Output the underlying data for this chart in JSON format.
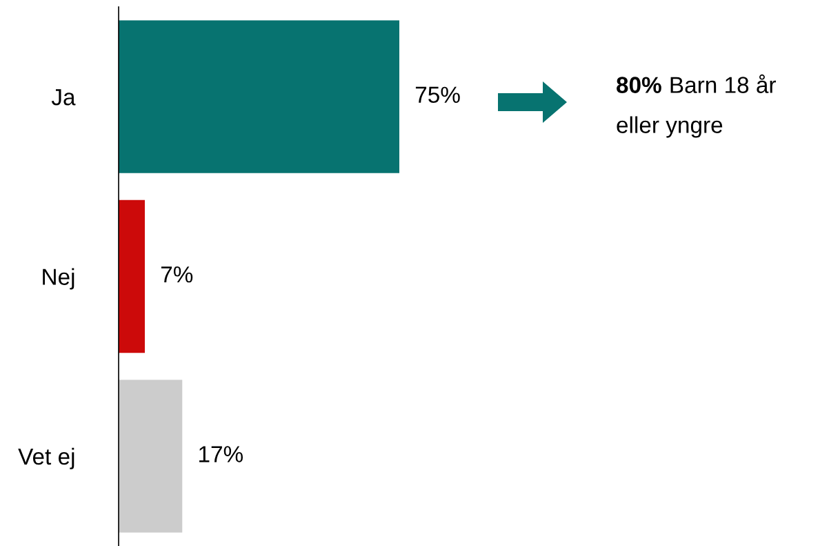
{
  "chart_data": {
    "type": "bar",
    "orientation": "horizontal",
    "categories": [
      "Ja",
      "Nej",
      "Vet ej"
    ],
    "values": [
      75,
      7,
      17
    ],
    "colors": [
      "#077370",
      "#cc0a0a",
      "#cccccc"
    ],
    "value_labels": [
      "75%",
      "7%",
      "17%"
    ],
    "tick_labels": "y",
    "grid": false,
    "legend": false,
    "annotations": [
      "80%",
      "Barn 18 år\neller yngre"
    ]
  }
}
